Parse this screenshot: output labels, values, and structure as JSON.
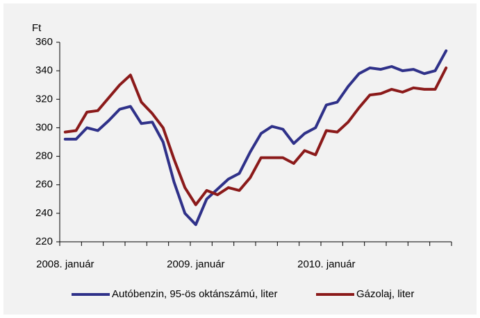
{
  "chart_data": {
    "type": "line",
    "y_label": "Ft",
    "categories": [
      "2008. január",
      null,
      null,
      null,
      null,
      null,
      null,
      null,
      null,
      null,
      null,
      null,
      "2009. január",
      null,
      null,
      null,
      null,
      null,
      null,
      null,
      null,
      null,
      null,
      null,
      "2010. január",
      null,
      null,
      null,
      null,
      null,
      null,
      null,
      null,
      null,
      null,
      null
    ],
    "series": [
      {
        "name": "Autóbenzin, 95-ös oktánszámú, liter",
        "color": "#2f3189",
        "values": [
          292,
          292,
          300,
          298,
          305,
          313,
          315,
          303,
          304,
          290,
          262,
          240,
          232,
          250,
          257,
          264,
          268,
          283,
          296,
          301,
          299,
          289,
          296,
          300,
          316,
          318,
          329,
          338,
          342,
          341,
          343,
          340,
          341,
          338,
          340,
          354
        ]
      },
      {
        "name": "Gázolaj, liter",
        "color": "#8b1a1a",
        "values": [
          297,
          298,
          311,
          312,
          321,
          330,
          337,
          318,
          310,
          300,
          278,
          258,
          246,
          256,
          253,
          258,
          256,
          265,
          279,
          279,
          279,
          275,
          284,
          281,
          298,
          297,
          304,
          314,
          323,
          324,
          327,
          325,
          328,
          327,
          327,
          342
        ]
      }
    ],
    "ylim": [
      220,
      360
    ],
    "yticks": [
      220,
      240,
      260,
      280,
      300,
      320,
      340,
      360
    ],
    "grid": false
  }
}
